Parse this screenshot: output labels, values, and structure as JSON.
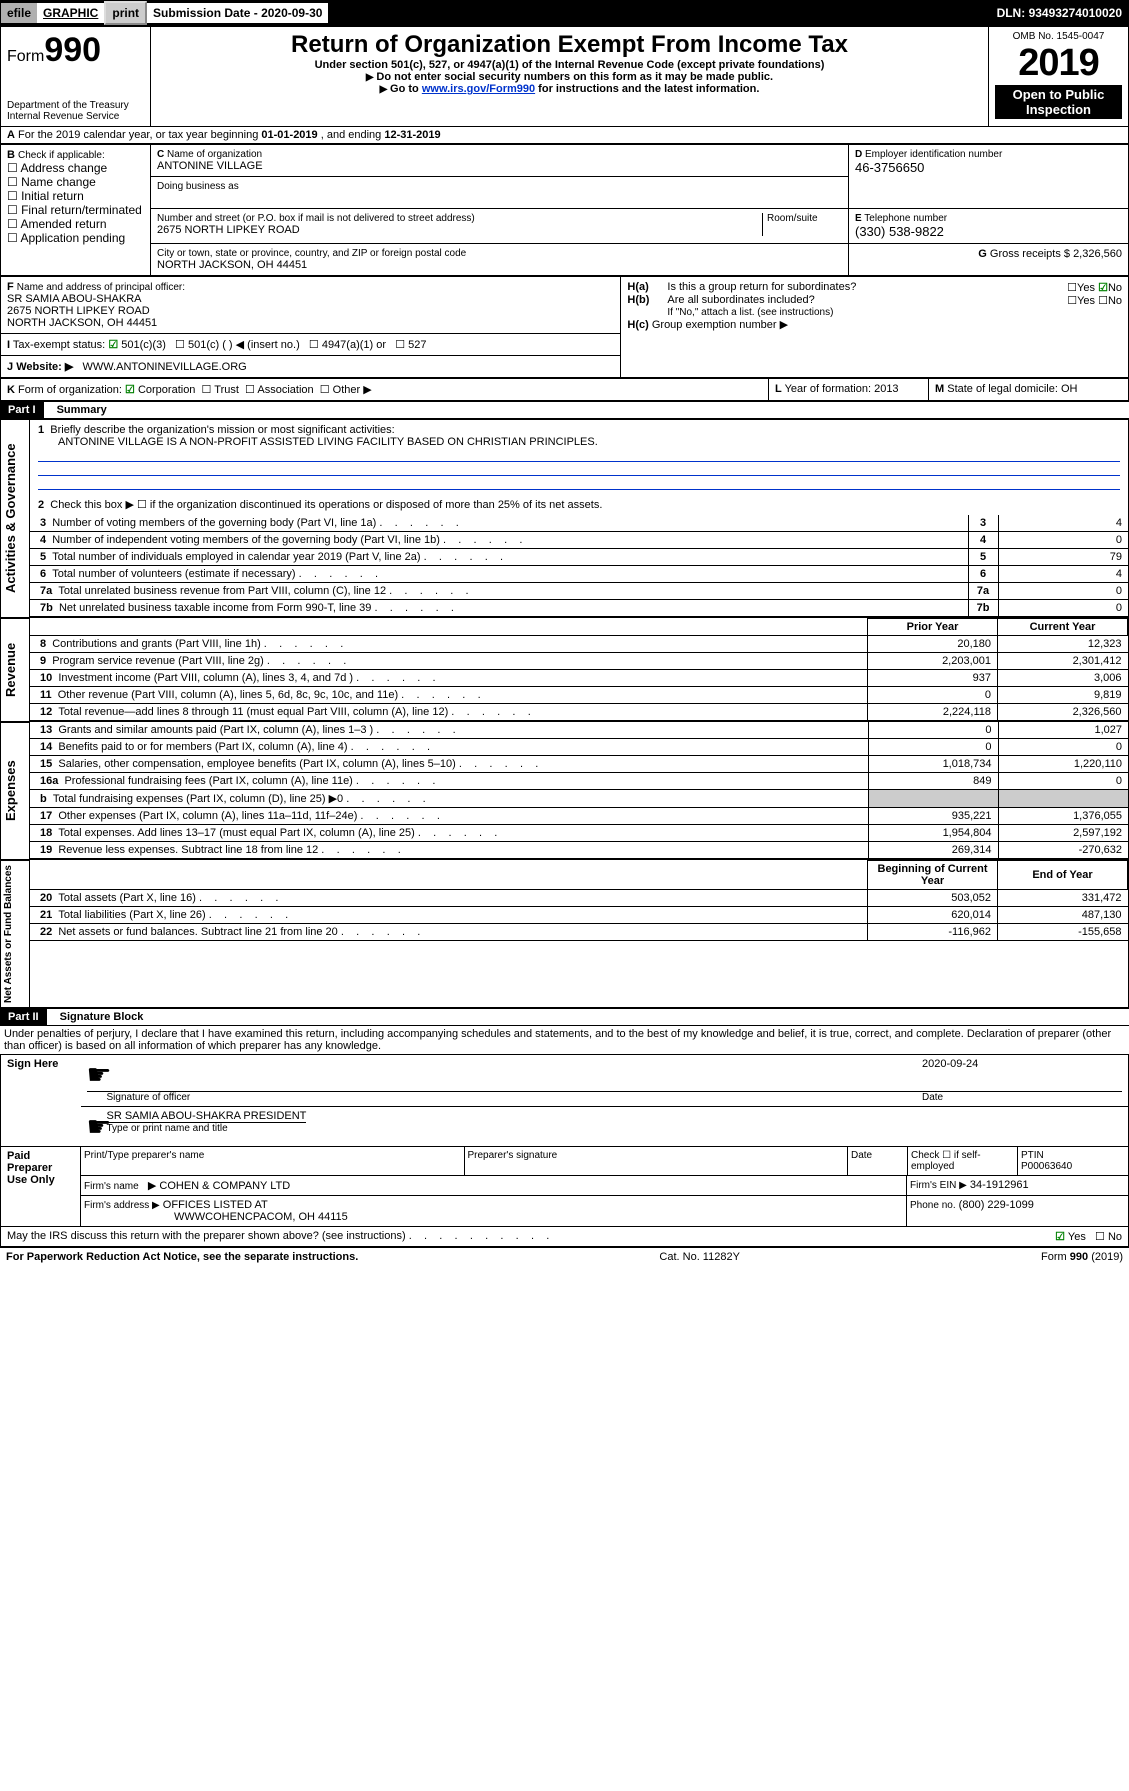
{
  "topbar": {
    "efile": "efile",
    "graphic": "GRAPHIC",
    "print": "print",
    "sub_label": "Submission Date - ",
    "sub_date": "2020-09-30",
    "dln_label": "DLN: ",
    "dln": "93493274010020"
  },
  "header": {
    "form": "Form",
    "form_num": "990",
    "dept": "Department of the Treasury",
    "irs": "Internal Revenue Service",
    "title": "Return of Organization Exempt From Income Tax",
    "subtitle": "Under section 501(c), 527, or 4947(a)(1) of the Internal Revenue Code (except private foundations)",
    "note1": "Do not enter social security numbers on this form as it may be made public.",
    "note2_pre": "Go to ",
    "note2_link": "www.irs.gov/Form990",
    "note2_post": " for instructions and the latest information.",
    "omb": "OMB No. 1545-0047",
    "year": "2019",
    "banner": "Open to Public Inspection"
  },
  "A": {
    "text_pre": "For the 2019 calendar year, or tax year beginning ",
    "begin": "01-01-2019",
    "text_mid": " , and ending ",
    "end": "12-31-2019"
  },
  "B": {
    "label": "Check if applicable:",
    "opts": [
      "Address change",
      "Name change",
      "Initial return",
      "Final return/terminated",
      "Amended return",
      "Application pending"
    ]
  },
  "C": {
    "label": "Name of organization",
    "name": "ANTONINE VILLAGE",
    "dba_label": "Doing business as",
    "street_label": "Number and street (or P.O. box if mail is not delivered to street address)",
    "room_label": "Room/suite",
    "street": "2675 NORTH LIPKEY ROAD",
    "city_label": "City or town, state or province, country, and ZIP or foreign postal code",
    "city": "NORTH JACKSON, OH   44451"
  },
  "D": {
    "label": "Employer identification number",
    "val": "46-3756650"
  },
  "E": {
    "label": "Telephone number",
    "val": "(330) 538-9822"
  },
  "G": {
    "label": "Gross receipts $",
    "val": "2,326,560"
  },
  "F": {
    "label": "Name and address of principal officer:",
    "name": "SR SAMIA ABOU-SHAKRA",
    "street": "2675 NORTH LIPKEY ROAD",
    "city": "NORTH JACKSON, OH   44451"
  },
  "H": {
    "a": "Is this a group return for subordinates?",
    "b": "Are all subordinates included?",
    "b_note": "If \"No,\" attach a list. (see instructions)",
    "c": "Group exemption number ▶",
    "yes": "Yes",
    "no": "No"
  },
  "I": {
    "label": "Tax-exempt status:",
    "opts": [
      "501(c)(3)",
      "501(c) (   ) ◀ (insert no.)",
      "4947(a)(1) or",
      "527"
    ]
  },
  "J": {
    "label": "Website: ▶",
    "val": "WWW.ANTONINEVILLAGE.ORG"
  },
  "K": {
    "label": "Form of organization:",
    "opts": [
      "Corporation",
      "Trust",
      "Association",
      "Other ▶"
    ]
  },
  "L": {
    "label": "Year of formation:",
    "val": "2013"
  },
  "M": {
    "label": "State of legal domicile:",
    "val": "OH"
  },
  "part1": {
    "hdr": "Part I",
    "title": "Summary",
    "l1_label": "Briefly describe the organization's mission or most significant activities:",
    "l1_val": "ANTONINE VILLAGE IS A NON-PROFIT ASSISTED LIVING FACILITY BASED ON CHRISTIAN PRINCIPLES.",
    "l2": "Check this box ▶ ☐  if the organization discontinued its operations or disposed of more than 25% of its net assets.",
    "vlabel_gov": "Activities & Governance",
    "vlabel_rev": "Revenue",
    "vlabel_exp": "Expenses",
    "vlabel_net": "Net Assets or Fund Balances",
    "prior": "Prior Year",
    "current": "Current Year",
    "begin": "Beginning of Current Year",
    "end": "End of Year",
    "rows_single": [
      {
        "n": "3",
        "t": "Number of voting members of the governing body (Part VI, line 1a)",
        "v": "4"
      },
      {
        "n": "4",
        "t": "Number of independent voting members of the governing body (Part VI, line 1b)",
        "v": "0"
      },
      {
        "n": "5",
        "t": "Total number of individuals employed in calendar year 2019 (Part V, line 2a)",
        "v": "79"
      },
      {
        "n": "6",
        "t": "Total number of volunteers (estimate if necessary)",
        "v": "4"
      },
      {
        "n": "7a",
        "t": "Total unrelated business revenue from Part VIII, column (C), line 12",
        "v": "0"
      },
      {
        "n": "7b",
        "t": "Net unrelated business taxable income from Form 990-T, line 39",
        "v": "0"
      }
    ],
    "rows_rev": [
      {
        "n": "8",
        "t": "Contributions and grants (Part VIII, line 1h)",
        "p": "20,180",
        "c": "12,323"
      },
      {
        "n": "9",
        "t": "Program service revenue (Part VIII, line 2g)",
        "p": "2,203,001",
        "c": "2,301,412"
      },
      {
        "n": "10",
        "t": "Investment income (Part VIII, column (A), lines 3, 4, and 7d )",
        "p": "937",
        "c": "3,006"
      },
      {
        "n": "11",
        "t": "Other revenue (Part VIII, column (A), lines 5, 6d, 8c, 9c, 10c, and 11e)",
        "p": "0",
        "c": "9,819"
      },
      {
        "n": "12",
        "t": "Total revenue—add lines 8 through 11 (must equal Part VIII, column (A), line 12)",
        "p": "2,224,118",
        "c": "2,326,560"
      }
    ],
    "rows_exp": [
      {
        "n": "13",
        "t": "Grants and similar amounts paid (Part IX, column (A), lines 1–3 )",
        "p": "0",
        "c": "1,027"
      },
      {
        "n": "14",
        "t": "Benefits paid to or for members (Part IX, column (A), line 4)",
        "p": "0",
        "c": "0"
      },
      {
        "n": "15",
        "t": "Salaries, other compensation, employee benefits (Part IX, column (A), lines 5–10)",
        "p": "1,018,734",
        "c": "1,220,110"
      },
      {
        "n": "16a",
        "t": "Professional fundraising fees (Part IX, column (A), line 11e)",
        "p": "849",
        "c": "0"
      },
      {
        "n": "b",
        "t": "Total fundraising expenses (Part IX, column (D), line 25) ▶0",
        "p": "",
        "c": ""
      },
      {
        "n": "17",
        "t": "Other expenses (Part IX, column (A), lines 11a–11d, 11f–24e)",
        "p": "935,221",
        "c": "1,376,055"
      },
      {
        "n": "18",
        "t": "Total expenses. Add lines 13–17 (must equal Part IX, column (A), line 25)",
        "p": "1,954,804",
        "c": "2,597,192"
      },
      {
        "n": "19",
        "t": "Revenue less expenses. Subtract line 18 from line 12",
        "p": "269,314",
        "c": "-270,632"
      }
    ],
    "rows_net": [
      {
        "n": "20",
        "t": "Total assets (Part X, line 16)",
        "p": "503,052",
        "c": "331,472"
      },
      {
        "n": "21",
        "t": "Total liabilities (Part X, line 26)",
        "p": "620,014",
        "c": "487,130"
      },
      {
        "n": "22",
        "t": "Net assets or fund balances. Subtract line 21 from line 20",
        "p": "-116,962",
        "c": "-155,658"
      }
    ]
  },
  "part2": {
    "hdr": "Part II",
    "title": "Signature Block",
    "decl": "Under penalties of perjury, I declare that I have examined this return, including accompanying schedules and statements, and to the best of my knowledge and belief, it is true, correct, and complete. Declaration of preparer (other than officer) is based on all information of which preparer has any knowledge.",
    "sign_here": "Sign Here",
    "paid_prep": "Paid Preparer Use Only",
    "sig_officer": "Signature of officer",
    "date_label": "Date",
    "sig_date": "2020-09-24",
    "officer_name": "SR SAMIA ABOU-SHAKRA  PRESIDENT",
    "type_name": "Type or print name and title",
    "prep_name_lbl": "Print/Type preparer's name",
    "prep_sig_lbl": "Preparer's signature",
    "check_self": "Check ☐ if self-employed",
    "ptin_lbl": "PTIN",
    "ptin": "P00063640",
    "firm_name_lbl": "Firm's name",
    "firm_name": "COHEN & COMPANY LTD",
    "firm_ein_lbl": "Firm's EIN ▶",
    "firm_ein": "34-1912961",
    "firm_addr_lbl": "Firm's address ▶",
    "firm_addr1": "OFFICES LISTED AT",
    "firm_addr2": "WWWCOHENCPACOM, OH   44115",
    "phone_lbl": "Phone no.",
    "phone": "(800) 229-1099",
    "discuss": "May the IRS discuss this return with the preparer shown above? (see instructions)",
    "yes": "Yes",
    "no": "No"
  },
  "footer": {
    "pra": "For Paperwork Reduction Act Notice, see the separate instructions.",
    "cat": "Cat. No. 11282Y",
    "form": "Form 990 (2019)"
  }
}
